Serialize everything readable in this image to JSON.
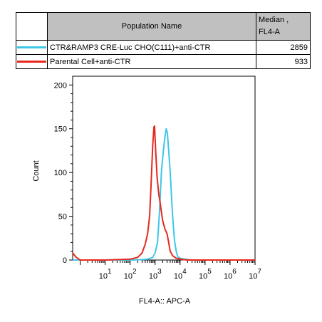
{
  "legend": {
    "header_name": "Population Name",
    "header_value": "Median ,",
    "header_value_sub": "FL4-A",
    "rows": [
      {
        "color": "#3ec6e8",
        "name": "CTR&RAMP3 CRE-Luc CHO(C111)+anti-CTR",
        "value": "2859"
      },
      {
        "color": "#e8281e",
        "name": "Parental Cell+anti-CTR",
        "value": "933"
      }
    ]
  },
  "chart_data": {
    "type": "line",
    "title": "",
    "xlabel": "FL4-A:: APC-A",
    "ylabel": "Count",
    "x_scale": "log",
    "xlim": [
      0.5,
      10000000
    ],
    "ylim": [
      0,
      210
    ],
    "y_ticks": [
      0,
      50,
      100,
      150,
      200
    ],
    "y_tick_labels": [
      "0",
      "50",
      "100",
      "150",
      "200"
    ],
    "x_ticks": [
      1,
      10,
      100,
      1000,
      10000,
      100000,
      1000000,
      10000000
    ],
    "x_tick_labels": [
      {
        "base": "10",
        "exp": "1"
      },
      {
        "base": "10",
        "exp": "2"
      },
      {
        "base": "10",
        "exp": "3"
      },
      {
        "base": "10",
        "exp": "4"
      },
      {
        "base": "10",
        "exp": "5"
      },
      {
        "base": "10",
        "exp": "6"
      },
      {
        "base": "10",
        "exp": "7"
      }
    ],
    "series": [
      {
        "name": "CTR&RAMP3 CRE-Luc CHO(C111)+anti-CTR",
        "color": "#3ec6e8",
        "points": [
          [
            0.5,
            0
          ],
          [
            100,
            0
          ],
          [
            300,
            0.5
          ],
          [
            500,
            1
          ],
          [
            800,
            3
          ],
          [
            1000,
            8
          ],
          [
            1250,
            20
          ],
          [
            1500,
            55
          ],
          [
            1800,
            102
          ],
          [
            2100,
            122
          ],
          [
            2500,
            142
          ],
          [
            2800,
            150
          ],
          [
            3100,
            145
          ],
          [
            3500,
            125
          ],
          [
            4000,
            100
          ],
          [
            5000,
            50
          ],
          [
            6000,
            22
          ],
          [
            7000,
            10
          ],
          [
            8000,
            4
          ],
          [
            10000,
            2
          ],
          [
            15000,
            1
          ],
          [
            30000,
            0
          ],
          [
            10000000,
            0
          ]
        ]
      },
      {
        "name": "Parental Cell+anti-CTR",
        "color": "#e8281e",
        "points": [
          [
            0.5,
            8
          ],
          [
            0.7,
            3
          ],
          [
            1,
            0
          ],
          [
            10,
            0
          ],
          [
            100,
            1
          ],
          [
            200,
            3
          ],
          [
            300,
            8
          ],
          [
            400,
            18
          ],
          [
            500,
            30
          ],
          [
            600,
            50
          ],
          [
            700,
            90
          ],
          [
            800,
            130
          ],
          [
            900,
            152
          ],
          [
            950,
            153
          ],
          [
            1050,
            125
          ],
          [
            1200,
            95
          ],
          [
            1400,
            75
          ],
          [
            1600,
            65
          ],
          [
            2000,
            45
          ],
          [
            2500,
            35
          ],
          [
            3000,
            30
          ],
          [
            3500,
            20
          ],
          [
            4000,
            10
          ],
          [
            5000,
            5
          ],
          [
            7000,
            2
          ],
          [
            10000,
            1
          ],
          [
            20000,
            0
          ],
          [
            10000000,
            0
          ]
        ]
      }
    ]
  }
}
